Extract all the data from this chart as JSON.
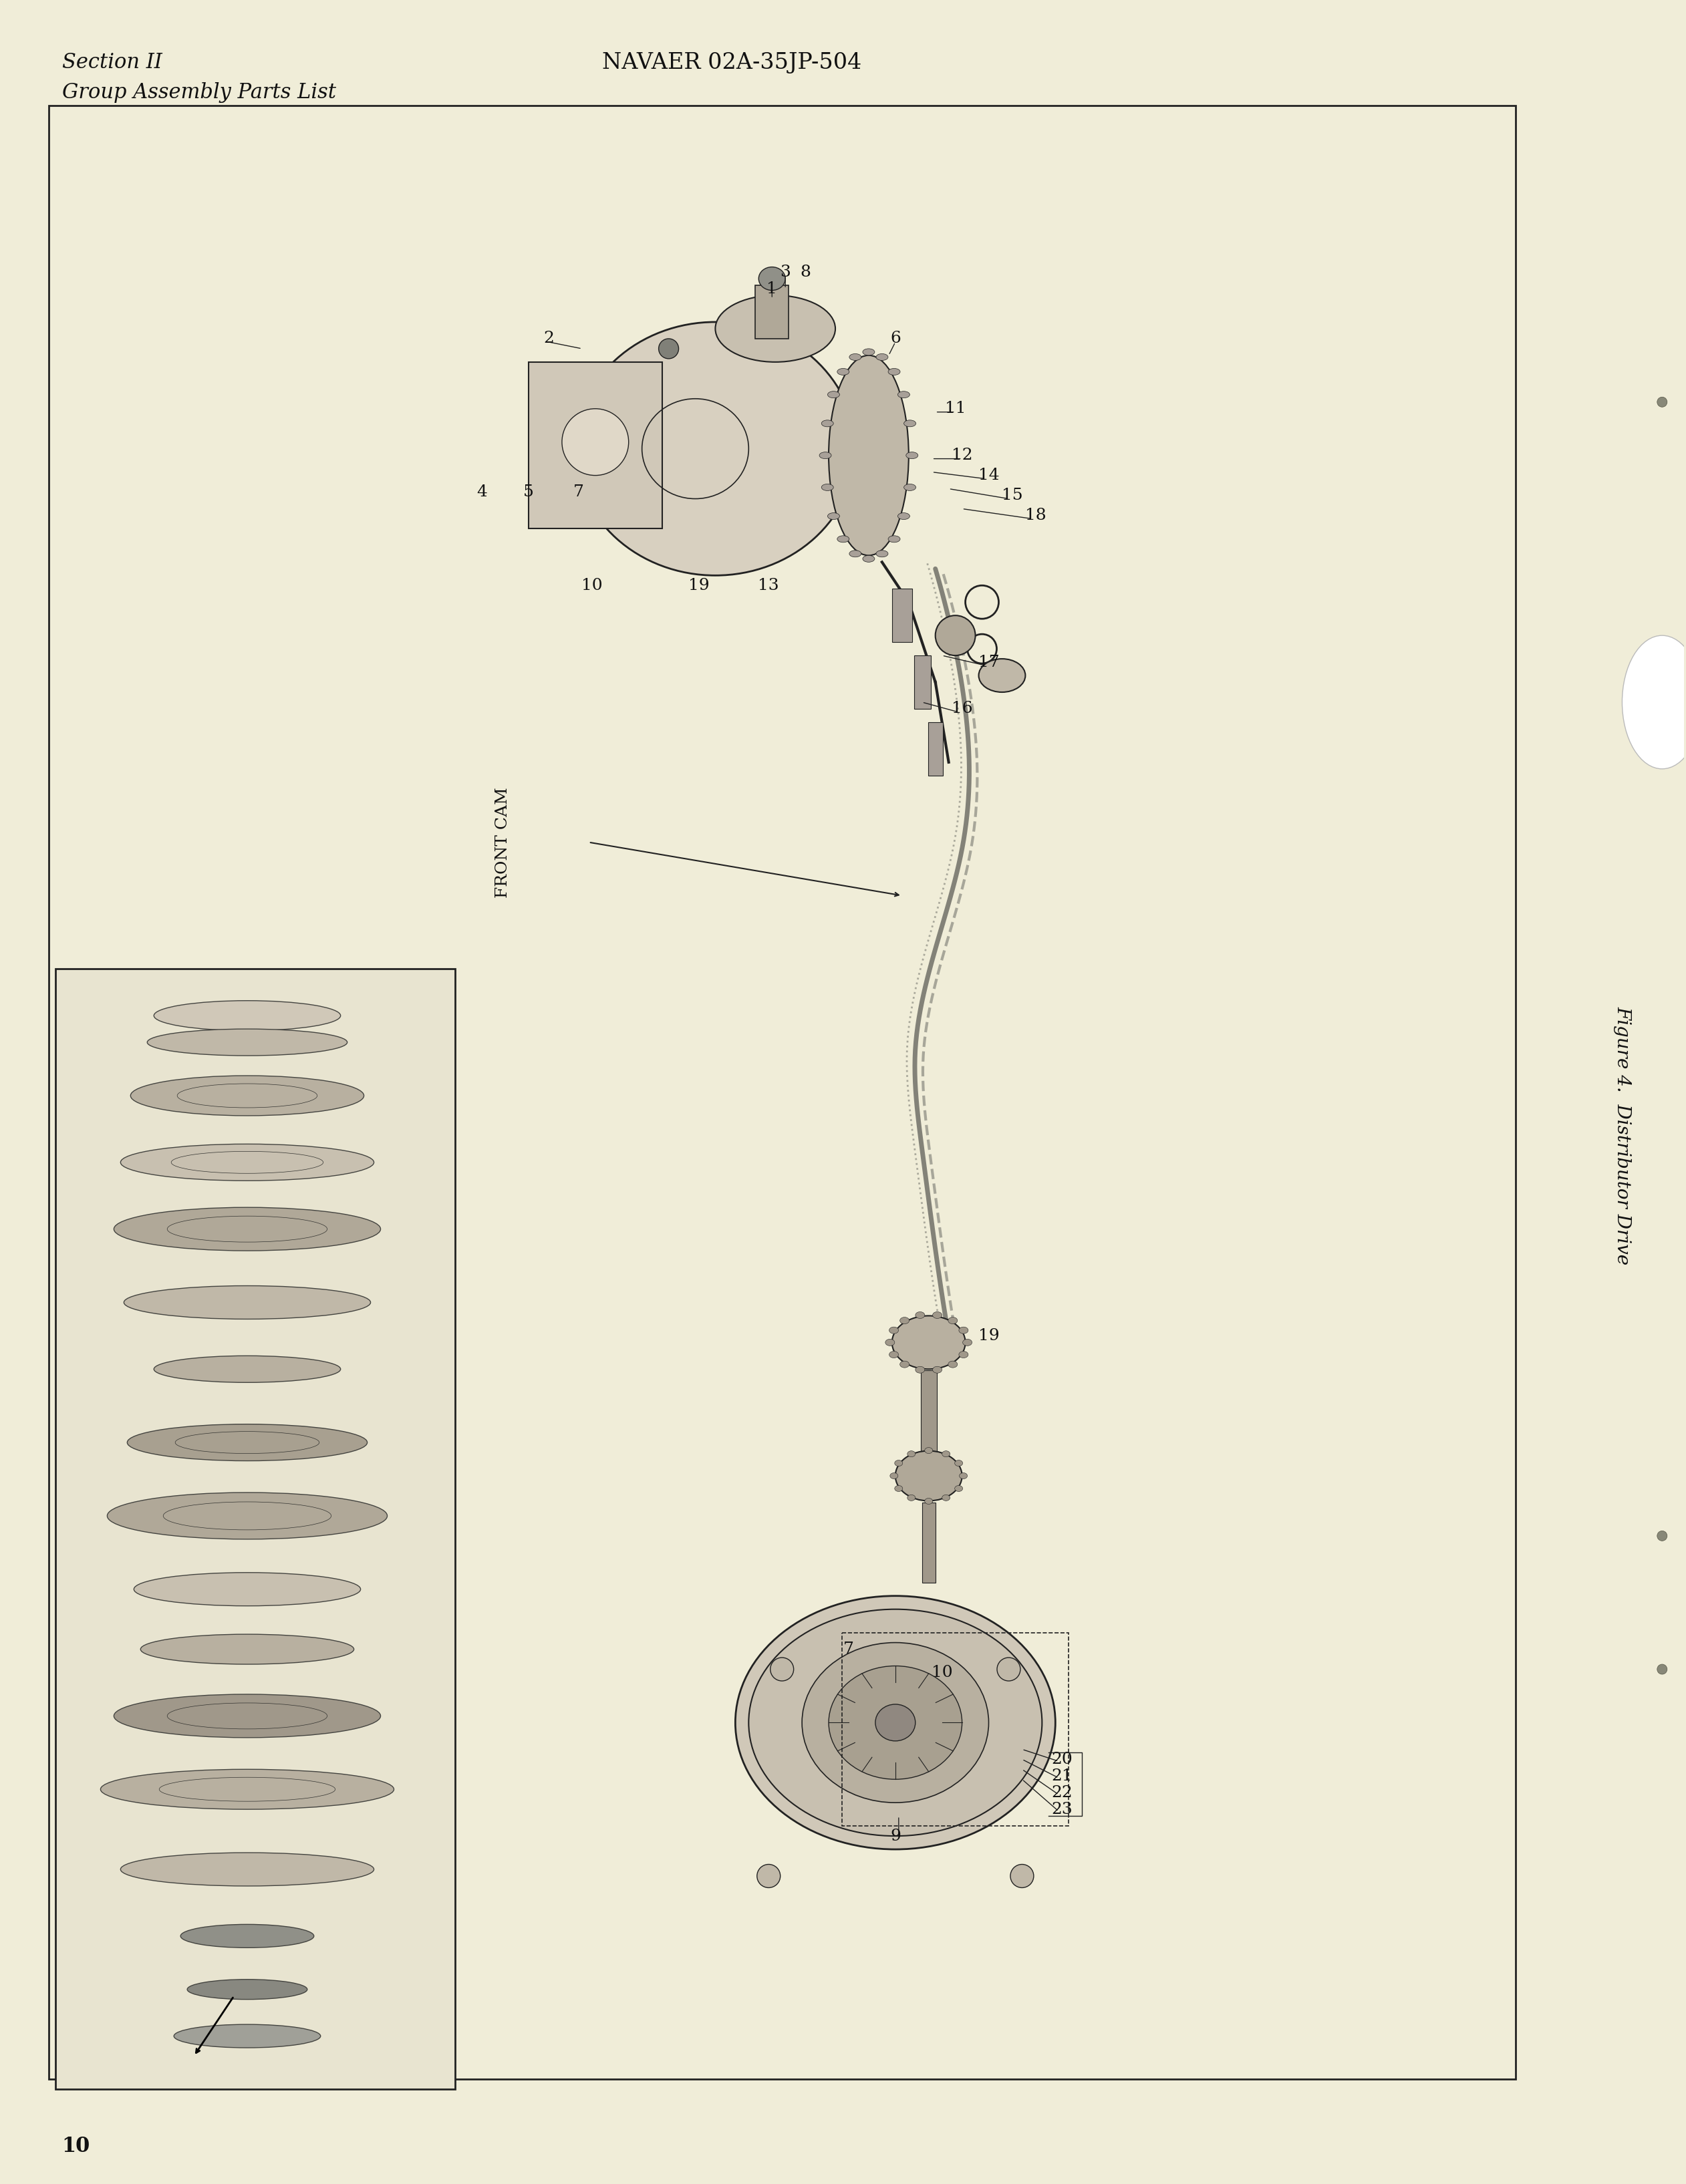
{
  "page_bg_color": "#F0EDD8",
  "inner_bg_color": "#F0EDD8",
  "border_color": "#222222",
  "text_color": "#111111",
  "header_left_line1": "Section II",
  "header_left_line2": "Group Assembly Parts List",
  "header_center": "NAVAER 02A-35JP-504",
  "page_number": "10",
  "right_label": "Figure 4.  Distributor Drive",
  "front_cam_label": "FRONT CAM"
}
